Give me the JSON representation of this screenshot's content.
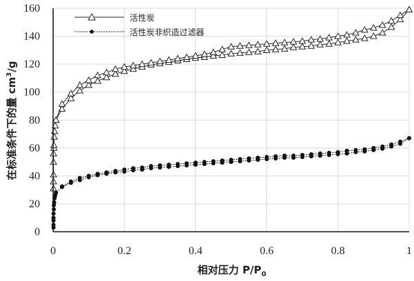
{
  "chart_data": {
    "type": "line",
    "title": "",
    "xlabel": "相对压力 P/P",
    "xlabel_sub": "0",
    "ylabel": "在标准条件下的量 cm",
    "ylabel_sup": "3",
    "ylabel_tail": "/g",
    "xlim": [
      0,
      1
    ],
    "ylim": [
      0,
      160
    ],
    "xticks": [
      "0",
      "0.2",
      "0.4",
      "0.6",
      "0.8",
      "1"
    ],
    "yticks": [
      "0",
      "20",
      "40",
      "60",
      "80",
      "100",
      "120",
      "140",
      "160"
    ],
    "grid": true,
    "legend_position": "top-left",
    "series": [
      {
        "name": "活性炭",
        "marker": "triangle-open",
        "line": "solid",
        "color": "#222222",
        "branches": [
          {
            "x": [
              0.001,
              0.001,
              0.001,
              0.001,
              0.001,
              0.002,
              0.002,
              0.003,
              0.004,
              0.006,
              0.008,
              0.025,
              0.05,
              0.075,
              0.1,
              0.125,
              0.15,
              0.175,
              0.2,
              0.225,
              0.25,
              0.275,
              0.3,
              0.325,
              0.35,
              0.375,
              0.4,
              0.425,
              0.45,
              0.475,
              0.5,
              0.525,
              0.55,
              0.575,
              0.6,
              0.625,
              0.65,
              0.675,
              0.7,
              0.725,
              0.75,
              0.775,
              0.8,
              0.825,
              0.85,
              0.875,
              0.9,
              0.925,
              0.95,
              0.975,
              1.0
            ],
            "y": [
              31,
              36,
              41,
              50,
              56,
              60,
              62,
              68,
              72,
              76,
              80,
              88,
              95.5,
              101,
              105,
              108,
              110.5,
              113,
              115,
              116.5,
              118,
              119.5,
              120.5,
              121.5,
              122.5,
              123.5,
              124.5,
              125,
              126,
              126.5,
              127.5,
              128,
              128.5,
              129,
              130,
              130.5,
              131,
              132,
              132.5,
              133,
              134,
              134.5,
              135.5,
              136.5,
              137.5,
              138.5,
              140,
              142.5,
              146.5,
              152,
              159
            ]
          },
          {
            "x": [
              1.0,
              0.975,
              0.95,
              0.925,
              0.9,
              0.875,
              0.85,
              0.825,
              0.8,
              0.775,
              0.75,
              0.725,
              0.7,
              0.675,
              0.65,
              0.625,
              0.6,
              0.575,
              0.55,
              0.525,
              0.5,
              0.475,
              0.45,
              0.425,
              0.4,
              0.375,
              0.35,
              0.325,
              0.3,
              0.275,
              0.25,
              0.225,
              0.2,
              0.175,
              0.15,
              0.125,
              0.1,
              0.075,
              0.05,
              0.025,
              0.008
            ],
            "y": [
              159,
              155,
              151,
              148,
              146,
              144.5,
              142.5,
              141,
              140,
              139,
              138,
              137.5,
              136.5,
              136,
              135.5,
              135,
              134.5,
              134,
              133.5,
              133,
              132.5,
              130.5,
              128.5,
              127,
              126,
              125,
              124,
              123,
              122,
              121,
              120,
              119,
              118,
              116.5,
              114,
              112,
              108.5,
              105,
              99,
              91.5,
              80
            ]
          }
        ]
      },
      {
        "name": "活性炭非织造过滤器",
        "marker": "circle-filled",
        "line": "dotted",
        "color": "#111111",
        "branches": [
          {
            "x": [
              0.001,
              0.001,
              0.001,
              0.001,
              0.001,
              0.002,
              0.002,
              0.003,
              0.004,
              0.006,
              0.008,
              0.025,
              0.05,
              0.075,
              0.1,
              0.125,
              0.15,
              0.175,
              0.2,
              0.225,
              0.25,
              0.275,
              0.3,
              0.325,
              0.35,
              0.375,
              0.4,
              0.425,
              0.45,
              0.475,
              0.5,
              0.525,
              0.55,
              0.575,
              0.6,
              0.625,
              0.65,
              0.675,
              0.7,
              0.725,
              0.75,
              0.775,
              0.8,
              0.825,
              0.85,
              0.875,
              0.9,
              0.925,
              0.95,
              0.975,
              1.0
            ],
            "y": [
              3,
              5,
              8,
              10,
              13,
              16,
              19,
              21,
              24,
              26,
              28,
              32,
              35,
              37,
              39,
              40.5,
              41.5,
              42.5,
              43,
              44,
              44.5,
              45.5,
              46,
              46.5,
              47,
              47.5,
              48,
              48.5,
              49,
              49.5,
              50,
              50.5,
              51,
              51.5,
              52,
              52.5,
              53,
              53,
              53.5,
              54,
              54.5,
              55,
              55.5,
              56,
              57,
              57.5,
              58.5,
              59.5,
              61,
              63,
              67
            ]
          },
          {
            "x": [
              1.0,
              0.975,
              0.95,
              0.925,
              0.9,
              0.875,
              0.85,
              0.825,
              0.8,
              0.775,
              0.75,
              0.725,
              0.7,
              0.675,
              0.65,
              0.625,
              0.6,
              0.575,
              0.55,
              0.525,
              0.5,
              0.475,
              0.45,
              0.425,
              0.4,
              0.375,
              0.35,
              0.325,
              0.3,
              0.275,
              0.25,
              0.225,
              0.2,
              0.175,
              0.15,
              0.125,
              0.1,
              0.075,
              0.05,
              0.025
            ],
            "y": [
              67,
              64.5,
              62.5,
              61,
              60,
              59,
              58.5,
              58,
              57,
              56.5,
              56,
              55.5,
              55,
              54.5,
              54.5,
              54,
              53.5,
              53,
              52.5,
              52,
              51.5,
              51,
              50.5,
              50,
              49.5,
              49,
              48.5,
              48,
              47.5,
              47,
              46,
              45.5,
              44.5,
              43.5,
              42.5,
              41.5,
              40,
              38.5,
              36,
              32.5
            ]
          }
        ]
      }
    ]
  }
}
